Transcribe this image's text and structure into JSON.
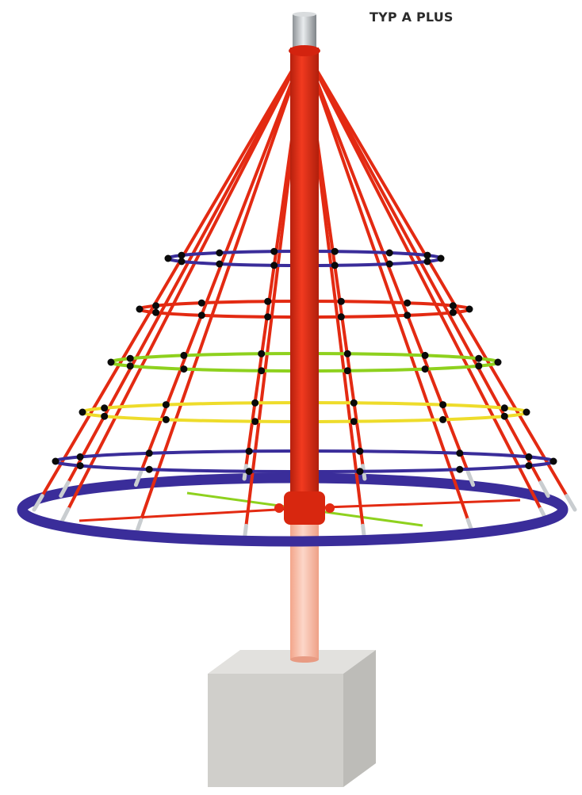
{
  "product": {
    "label": "TYP A PLUS"
  },
  "colors": {
    "rope": "#e32a12",
    "ring_blue": "#3a2d9a",
    "ring_green": "#8ed11e",
    "ring_yellow": "#eedc2b",
    "knot": "#0a0a0a",
    "pole": "#e02a12",
    "pole_lower": "#f6b8a2",
    "foundation": "#d0cfcb",
    "cap": "#b7bcbf"
  }
}
